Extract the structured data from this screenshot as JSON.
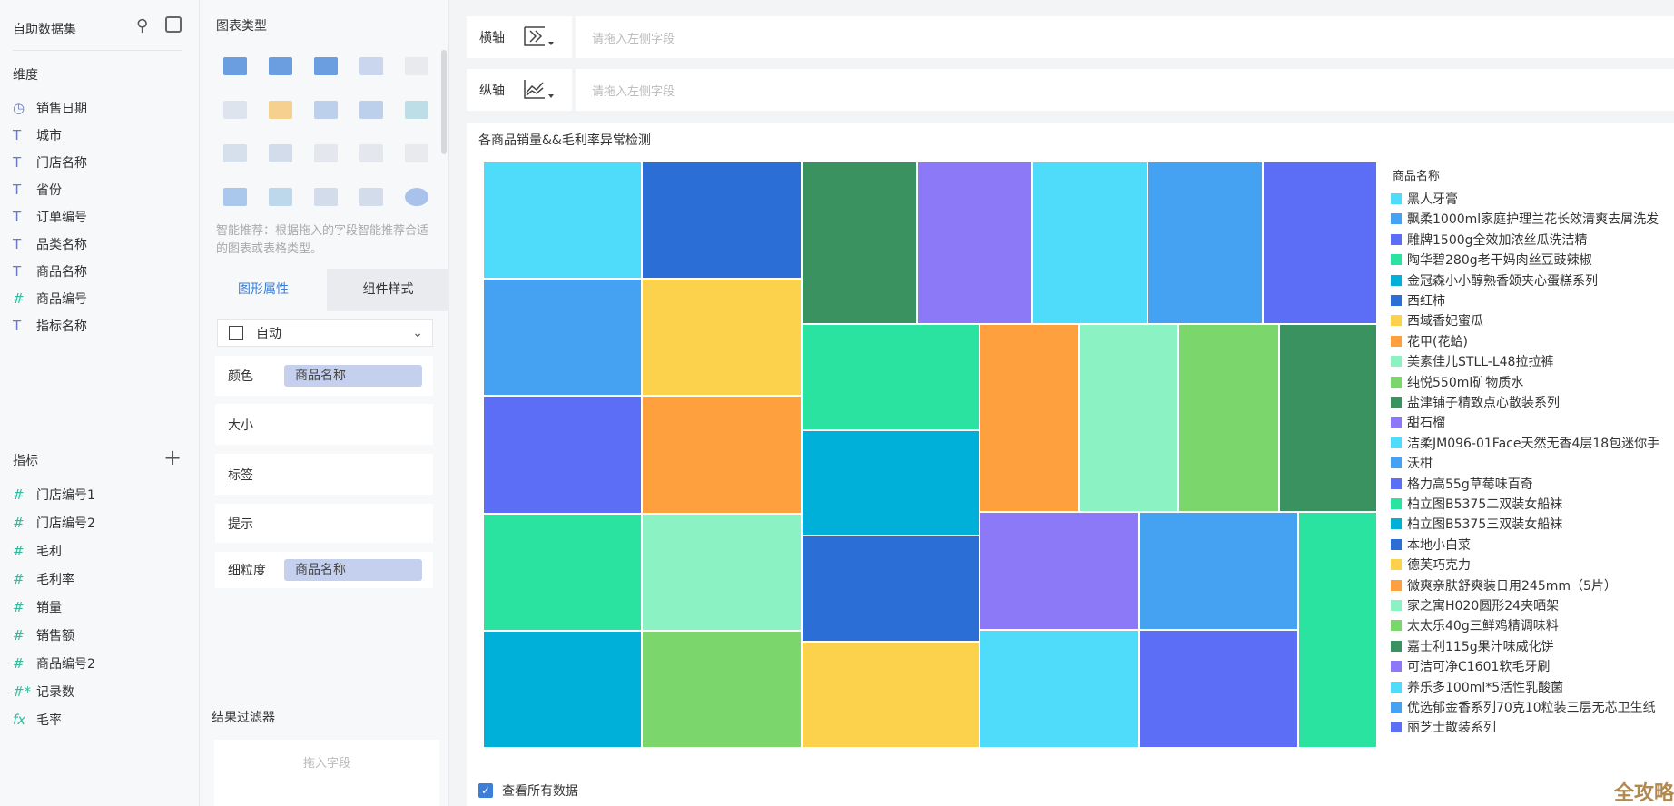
{
  "left": {
    "title": "自助数据集",
    "dims_label": "维度",
    "measures_label": "指标",
    "dimensions": [
      {
        "icon": "clock",
        "label": "销售日期"
      },
      {
        "icon": "T",
        "label": "城市"
      },
      {
        "icon": "T",
        "label": "门店名称"
      },
      {
        "icon": "T",
        "label": "省份"
      },
      {
        "icon": "T",
        "label": "订单编号"
      },
      {
        "icon": "T",
        "label": "品类名称"
      },
      {
        "icon": "T",
        "label": "商品名称"
      },
      {
        "icon": "#",
        "label": "商品编号"
      },
      {
        "icon": "T",
        "label": "指标名称"
      }
    ],
    "measures": [
      {
        "icon": "#",
        "label": "门店编号1"
      },
      {
        "icon": "#",
        "label": "门店编号2"
      },
      {
        "icon": "#",
        "label": "毛利"
      },
      {
        "icon": "#",
        "label": "毛利率"
      },
      {
        "icon": "#",
        "label": "销量"
      },
      {
        "icon": "#",
        "label": "销售额"
      },
      {
        "icon": "#",
        "label": "商品编号2"
      },
      {
        "icon": "#*",
        "label": "记录数"
      },
      {
        "icon": "fx",
        "label": "毛率"
      }
    ]
  },
  "mid": {
    "chart_types_label": "图表类型",
    "hint": "智能推荐：根据拖入的字段智能推荐合适的图表或表格类型。",
    "tabs": [
      "图形属性",
      "组件样式"
    ],
    "active_tab": 0,
    "shape_select": "自动",
    "props": [
      {
        "label": "颜色",
        "value": "商品名称"
      },
      {
        "label": "大小",
        "value": ""
      },
      {
        "label": "标签",
        "value": ""
      },
      {
        "label": "提示",
        "value": ""
      },
      {
        "label": "细粒度",
        "value": "商品名称"
      }
    ],
    "filter_label": "结果过滤器",
    "filter_placeholder": "拖入字段"
  },
  "axes": {
    "x_label": "横轴",
    "y_label": "纵轴",
    "placeholder": "请拖入左侧字段"
  },
  "chart": {
    "title": "各商品销量&&毛利率异常检测",
    "legend_title": "商品名称",
    "palette": [
      "#4fdcfa",
      "#45a2f2",
      "#5b6ef5",
      "#2be3a0",
      "#00b0d9",
      "#2b6fd6",
      "#fcd24c",
      "#ffa03f",
      "#8af2c3",
      "#7bd66c",
      "#3a9260",
      "#8c79f7"
    ],
    "legend": [
      "黑人牙膏",
      "飘柔1000ml家庭护理兰花长效清爽去屑洗发",
      "雕牌1500g全效加浓丝瓜洗洁精",
      "陶华碧280g老干妈肉丝豆豉辣椒",
      "金冠森小小醇熟香颂夹心蛋糕系列",
      "西红柿",
      "西域香妃蜜瓜",
      "花甲(花蛤)",
      "美素佳儿STLL-L48拉拉裤",
      "纯悦550ml矿物质水",
      "盐津铺子精致点心散装系列",
      "甜石榴",
      "洁柔JM096-01Face天然无香4层18包迷你手",
      "沃柑",
      "格力高55g草莓味百奇",
      "柏立图B5375二双装女船袜",
      "柏立图B5375三双装女船袜",
      "本地小白菜",
      "德芙巧克力",
      "微爽亲肤舒爽装日用245mm（5片）",
      "家之寓H020圆形24夹晒架",
      "太太乐40g三鲜鸡精调味料",
      "嘉士利115g果汁味威化饼",
      "可洁可净C1601软毛牙刷",
      "养乐多100ml*5活性乳酸菌",
      "优选郁金香系列70克10粒装三层无芯卫生纸",
      "丽芝士散装系列"
    ],
    "show_all_label": "查看所有数据",
    "show_all_checked": true
  },
  "watermark": "全攻略"
}
